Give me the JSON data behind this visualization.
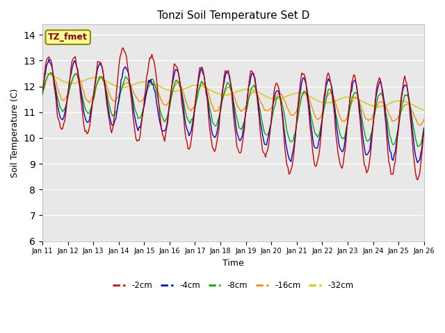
{
  "title": "Tonzi Soil Temperature Set D",
  "xlabel": "Time",
  "ylabel": "Soil Temperature (C)",
  "ylim": [
    6.0,
    14.4
  ],
  "yticks": [
    6.0,
    7.0,
    8.0,
    9.0,
    10.0,
    11.0,
    12.0,
    13.0,
    14.0
  ],
  "legend_label": "TZ_fmet",
  "series_labels": [
    "-2cm",
    "-4cm",
    "-8cm",
    "-16cm",
    "-32cm"
  ],
  "series_colors": [
    "#cc0000",
    "#0000cc",
    "#00aa00",
    "#ff8800",
    "#cccc00"
  ],
  "background_color": "#e8e8e8",
  "legend_box_color": "#ffff99",
  "legend_box_edge": "#888800",
  "figsize": [
    6.4,
    4.8
  ],
  "dpi": 100
}
